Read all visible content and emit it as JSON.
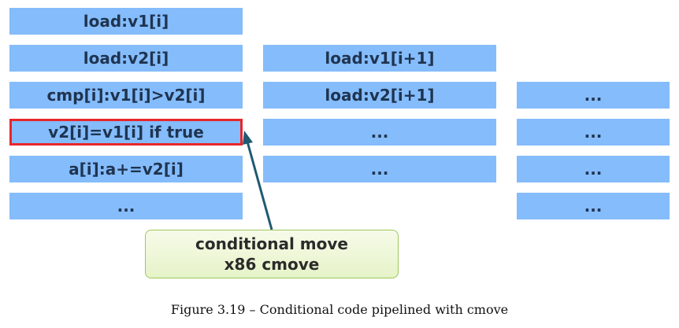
{
  "column1": [
    "load:v1[i]",
    "load:v2[i]",
    "cmp[i]:v1[i]>v2[i]",
    "v2[i]=v1[i] if true",
    "a[i]:a+=v2[i]",
    "..."
  ],
  "column2": [
    "load:v1[i+1]",
    "load:v2[i+1]",
    "...",
    "..."
  ],
  "column3": [
    "...",
    "...",
    "...",
    "..."
  ],
  "callout": {
    "line1": "conditional move",
    "line2": "x86 cmove"
  },
  "caption": "Figure 3.19 – Conditional code pipelined with cmove",
  "colors": {
    "box": "#85bcfb",
    "highlight_border": "#e8262a",
    "arrow": "#1f5a73",
    "callout_border": "#9ec85a"
  }
}
